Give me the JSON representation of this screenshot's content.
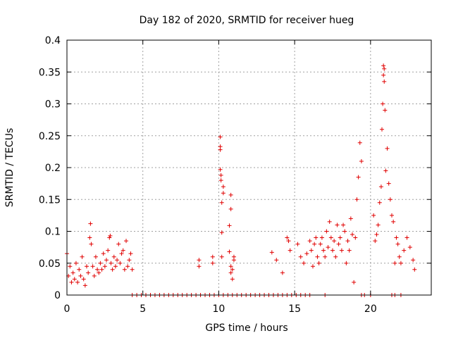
{
  "chart_data": {
    "type": "scatter",
    "title": "Day 182 of 2020, SRMTID for receiver hueg",
    "xlabel": "GPS time / hours",
    "ylabel": "SRMTID / TECUs",
    "xlim": [
      0,
      24
    ],
    "ylim": [
      0,
      0.4
    ],
    "xticks": [
      0,
      5,
      10,
      15,
      20
    ],
    "xtick_labels": [
      "0",
      "5",
      "10",
      "15",
      "20"
    ],
    "yticks": [
      0,
      0.05,
      0.1,
      0.15,
      0.2,
      0.25,
      0.3,
      0.35,
      0.4
    ],
    "ytick_labels": [
      "0",
      "0.05",
      "0.1",
      "0.15",
      "0.2",
      "0.25",
      "0.3",
      "0.35",
      "0.4"
    ],
    "grid": true,
    "marker": "+",
    "marker_color": "#e00000",
    "series": [
      {
        "name": "SRMTID",
        "x": [
          0.0,
          0.1,
          0.2,
          0.3,
          0.4,
          0.5,
          0.6,
          0.7,
          0.8,
          0.9,
          1.0,
          1.1,
          1.2,
          1.3,
          1.4,
          1.5,
          1.55,
          1.6,
          1.7,
          1.8,
          1.9,
          2.0,
          2.1,
          2.2,
          2.3,
          2.4,
          2.5,
          2.6,
          2.7,
          2.8,
          2.85,
          2.9,
          3.0,
          3.1,
          3.2,
          3.3,
          3.4,
          3.5,
          3.6,
          3.7,
          3.8,
          3.9,
          4.0,
          4.1,
          4.2,
          4.3,
          4.3,
          4.6,
          4.9,
          5.2,
          5.5,
          5.8,
          6.1,
          6.4,
          6.7,
          7.0,
          7.3,
          7.6,
          7.9,
          8.2,
          8.5,
          8.8,
          9.1,
          9.4,
          9.7,
          10.0,
          10.3,
          10.6,
          10.9,
          11.2,
          11.5,
          11.8,
          12.1,
          12.4,
          12.7,
          13.0,
          13.3,
          13.6,
          13.9,
          14.2,
          14.5,
          14.8,
          15.1,
          15.4,
          15.7,
          16.0,
          17.0,
          19.4,
          19.6,
          20.0,
          21.4,
          21.6,
          22.0,
          8.7,
          8.7,
          9.6,
          9.6,
          10.1,
          10.1,
          10.1,
          10.1,
          10.15,
          10.15,
          10.2,
          10.2,
          10.2,
          10.3,
          10.3,
          10.7,
          10.7,
          10.8,
          10.8,
          10.8,
          10.8,
          10.9,
          10.9,
          11.0,
          11.0,
          13.5,
          13.8,
          14.2,
          14.5,
          14.6,
          14.7,
          15.2,
          15.4,
          15.6,
          15.8,
          16.0,
          16.1,
          16.2,
          16.3,
          16.4,
          16.5,
          16.6,
          16.7,
          16.8,
          16.9,
          17.0,
          17.1,
          17.2,
          17.3,
          17.4,
          17.5,
          17.6,
          17.7,
          17.8,
          17.9,
          18.0,
          18.1,
          18.2,
          18.3,
          18.4,
          18.5,
          18.6,
          18.7,
          18.8,
          18.9,
          19.0,
          19.1,
          19.2,
          19.3,
          19.4,
          20.2,
          20.3,
          20.4,
          20.5,
          20.6,
          20.7,
          20.75,
          20.8,
          20.85,
          20.85,
          20.9,
          20.9,
          20.95,
          21.0,
          21.1,
          21.2,
          21.3,
          21.4,
          21.5,
          21.6,
          21.7,
          21.8,
          21.9,
          22.0,
          22.2,
          22.4,
          22.6,
          22.8,
          22.9
        ],
        "y": [
          0.065,
          0.03,
          0.045,
          0.02,
          0.035,
          0.025,
          0.05,
          0.02,
          0.04,
          0.03,
          0.06,
          0.025,
          0.015,
          0.045,
          0.035,
          0.09,
          0.112,
          0.08,
          0.045,
          0.03,
          0.06,
          0.04,
          0.035,
          0.05,
          0.04,
          0.065,
          0.045,
          0.055,
          0.07,
          0.09,
          0.093,
          0.05,
          0.04,
          0.06,
          0.045,
          0.055,
          0.08,
          0.05,
          0.065,
          0.07,
          0.04,
          0.085,
          0.045,
          0.055,
          0.065,
          0.04,
          0.0,
          0.0,
          0.0,
          0.0,
          0.0,
          0.0,
          0.0,
          0.0,
          0.0,
          0.0,
          0.0,
          0.0,
          0.0,
          0.0,
          0.0,
          0.0,
          0.0,
          0.0,
          0.0,
          0.0,
          0.0,
          0.0,
          0.0,
          0.0,
          0.0,
          0.0,
          0.0,
          0.0,
          0.0,
          0.0,
          0.0,
          0.0,
          0.0,
          0.0,
          0.0,
          0.0,
          0.0,
          0.0,
          0.0,
          0.0,
          0.0,
          0.0,
          0.0,
          0.0,
          0.0,
          0.0,
          0.0,
          0.055,
          0.045,
          0.05,
          0.06,
          0.248,
          0.233,
          0.228,
          0.197,
          0.188,
          0.18,
          0.145,
          0.098,
          0.06,
          0.16,
          0.17,
          0.109,
          0.068,
          0.157,
          0.135,
          0.045,
          0.035,
          0.025,
          0.04,
          0.06,
          0.055,
          0.067,
          0.055,
          0.035,
          0.09,
          0.085,
          0.07,
          0.08,
          0.06,
          0.05,
          0.065,
          0.085,
          0.07,
          0.045,
          0.08,
          0.09,
          0.06,
          0.05,
          0.08,
          0.09,
          0.07,
          0.06,
          0.1,
          0.075,
          0.115,
          0.09,
          0.07,
          0.085,
          0.06,
          0.11,
          0.08,
          0.09,
          0.07,
          0.11,
          0.1,
          0.05,
          0.085,
          0.07,
          0.12,
          0.095,
          0.02,
          0.09,
          0.15,
          0.185,
          0.239,
          0.21,
          0.125,
          0.085,
          0.095,
          0.11,
          0.145,
          0.17,
          0.26,
          0.3,
          0.345,
          0.36,
          0.355,
          0.335,
          0.29,
          0.195,
          0.23,
          0.175,
          0.15,
          0.125,
          0.115,
          0.05,
          0.09,
          0.08,
          0.06,
          0.05,
          0.07,
          0.09,
          0.075,
          0.055,
          0.04
        ]
      }
    ]
  }
}
